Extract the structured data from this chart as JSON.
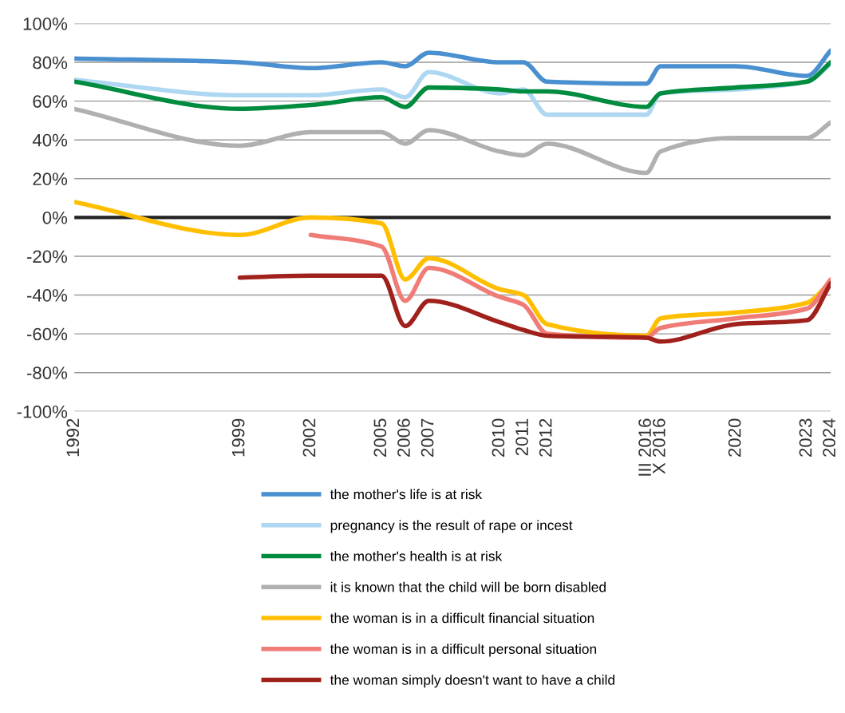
{
  "chart_data": {
    "type": "line",
    "x": [
      1992,
      1999,
      2002,
      2005,
      2006,
      2007,
      2010,
      2011,
      2012,
      2016.2,
      2016.8,
      2020,
      2023,
      2024
    ],
    "series": [
      {
        "name": "the mother's life is at risk",
        "color": "#4a90d0",
        "values": [
          82,
          80,
          77,
          80,
          78,
          85,
          80,
          80,
          70,
          69,
          78,
          78,
          73,
          86
        ]
      },
      {
        "name": "pregnancy is the result of rape or incest",
        "color": "#aed8f2",
        "values": [
          71,
          63,
          63,
          66,
          62,
          75,
          64,
          66,
          53,
          53,
          64,
          66,
          70,
          79
        ]
      },
      {
        "name": "the mother's health is at risk",
        "color": "#008c3e",
        "values": [
          70,
          56,
          58,
          62,
          57,
          67,
          66,
          65,
          65,
          57,
          64,
          67,
          70,
          80
        ]
      },
      {
        "name": "it is known that the child will be born disabled",
        "color": "#b0b0b0",
        "values": [
          56,
          37,
          44,
          44,
          38,
          45,
          34,
          32,
          38,
          23,
          34,
          41,
          41,
          49
        ]
      },
      {
        "name": "the woman is in a difficult financial situation",
        "color": "#ffbf00",
        "values": [
          8,
          -9,
          0,
          -3,
          -32,
          -21,
          -37,
          -40,
          -55,
          -61,
          -52,
          -49,
          -44,
          -33
        ]
      },
      {
        "name": "the woman is in a difficult personal situation",
        "color": "#f07c78",
        "values": [
          null,
          null,
          -9,
          -15,
          -43,
          -26,
          -41,
          -45,
          -60,
          -62,
          -57,
          -52,
          -47,
          -32
        ]
      },
      {
        "name": "the woman simply doesn't want to have a child",
        "color": "#a0201c",
        "values": [
          null,
          -31,
          -30,
          -30,
          -56,
          -43,
          -54,
          -58,
          -61,
          -62,
          -64,
          -55,
          -53,
          -34
        ]
      }
    ],
    "xlim": [
      1992,
      2024
    ],
    "xticks": [
      1992,
      1999,
      2002,
      2005,
      2006,
      2007,
      2010,
      2011,
      2012,
      {
        "value": 2016.2,
        "label": "III 2016"
      },
      {
        "value": 2016.8,
        "label": "X 2016"
      },
      2020,
      2023,
      2024
    ],
    "ylim": [
      -100,
      100
    ],
    "yticks": [
      {
        "value": -100,
        "label": "-100%"
      },
      {
        "value": -80,
        "label": "-80%"
      },
      {
        "value": -60,
        "label": "-60%"
      },
      {
        "value": -40,
        "label": "-40%"
      },
      {
        "value": -20,
        "label": "-20%"
      },
      {
        "value": 0,
        "label": "0%"
      },
      {
        "value": 20,
        "label": "20%"
      },
      {
        "value": 40,
        "label": "40%"
      },
      {
        "value": 60,
        "label": "60%"
      },
      {
        "value": 80,
        "label": "80%"
      },
      {
        "value": 100,
        "label": "100%"
      }
    ],
    "ref_lines": [
      {
        "axis": "y",
        "value": 0,
        "color": "#222222"
      }
    ],
    "grid": "y",
    "legend": "bottom",
    "marker": "none",
    "line_style": "solid"
  }
}
